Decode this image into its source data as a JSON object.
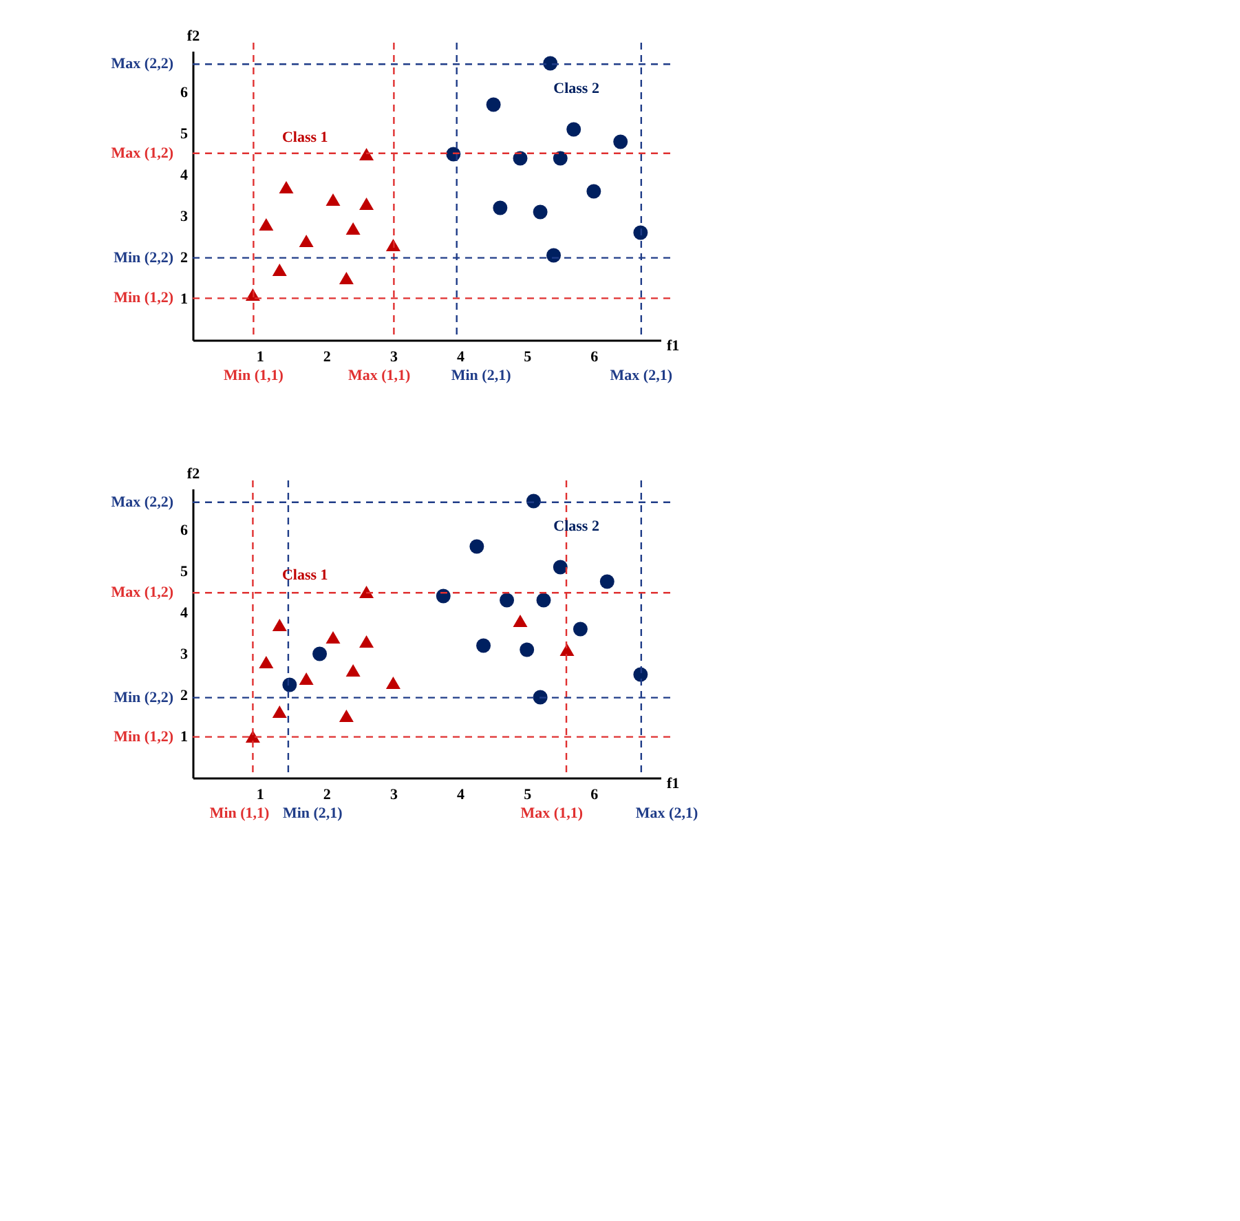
{
  "chart_data": [
    {
      "type": "scatter",
      "xlabel": "f1",
      "ylabel": "f2",
      "xlim": [
        0,
        7
      ],
      "ylim": [
        0,
        7
      ],
      "xticks": [
        1,
        2,
        3,
        4,
        5,
        6
      ],
      "yticks": [
        1,
        2,
        3,
        4,
        5,
        6
      ],
      "series": [
        {
          "color": "#c00000",
          "marker": "triangle",
          "x": [
            0.9,
            1.3,
            1.1,
            1.4,
            1.7,
            2.1,
            2.3,
            2.4,
            2.6,
            2.6,
            3.0
          ],
          "values": [
            1.1,
            1.7,
            2.8,
            3.7,
            2.4,
            3.4,
            1.5,
            2.7,
            3.3,
            4.5,
            2.3
          ]
        },
        {
          "color": "#002060",
          "marker": "circle",
          "x": [
            5.35,
            4.5,
            5.7,
            6.4,
            3.9,
            4.9,
            5.5,
            6.0,
            4.6,
            5.2,
            6.7,
            5.4
          ],
          "values": [
            6.7,
            5.7,
            5.1,
            4.8,
            4.5,
            4.4,
            4.4,
            3.6,
            3.2,
            3.1,
            2.6,
            2.05
          ]
        }
      ],
      "ref_lines": [
        {
          "axis": "x",
          "value": 0.91,
          "label": "Min (1,1)",
          "color": "#e03030",
          "line_style": "dashed"
        },
        {
          "axis": "x",
          "value": 3.01,
          "label": "Max (1,1)",
          "color": "#e03030",
          "line_style": "dashed"
        },
        {
          "axis": "x",
          "value": 3.95,
          "label": "Min (2,1)",
          "color": "#1f3c88",
          "line_style": "dashed"
        },
        {
          "axis": "x",
          "value": 6.71,
          "label": "Max (2,1)",
          "color": "#1f3c88",
          "line_style": "dashed"
        },
        {
          "axis": "y",
          "value": 6.68,
          "label": "Max (2,2)",
          "color": "#1f3c88",
          "line_style": "dashed"
        },
        {
          "axis": "y",
          "value": 4.52,
          "label": "Max (1,2)",
          "color": "#e03030",
          "line_style": "dashed"
        },
        {
          "axis": "y",
          "value": 1.99,
          "label": "Min (2,2)",
          "color": "#1f3c88",
          "line_style": "dashed"
        },
        {
          "axis": "y",
          "value": 1.01,
          "label": "Min (1,2)",
          "color": "#e03030",
          "line_style": "dashed"
        }
      ],
      "annotations": [
        "Class 1",
        "Class 2"
      ]
    },
    {
      "type": "scatter",
      "xlabel": "f1",
      "ylabel": "f2",
      "xlim": [
        0,
        7
      ],
      "ylim": [
        0,
        7
      ],
      "xticks": [
        1,
        2,
        3,
        4,
        5,
        6
      ],
      "yticks": [
        1,
        2,
        3,
        4,
        5,
        6
      ],
      "series": [
        {
          "color": "#c00000",
          "marker": "triangle",
          "x": [
            0.9,
            1.3,
            1.1,
            1.3,
            1.7,
            2.1,
            2.3,
            2.4,
            2.6,
            2.6,
            3.0,
            4.9,
            5.6
          ],
          "values": [
            1.0,
            1.6,
            2.8,
            3.7,
            2.4,
            3.4,
            1.5,
            2.6,
            3.3,
            4.5,
            2.3,
            3.8,
            3.1
          ]
        },
        {
          "color": "#002060",
          "marker": "circle",
          "x": [
            5.1,
            4.25,
            5.5,
            6.2,
            3.75,
            4.7,
            5.25,
            5.8,
            4.35,
            5.0,
            1.9,
            1.45,
            6.7,
            5.2
          ],
          "values": [
            6.7,
            5.6,
            5.1,
            4.75,
            4.4,
            4.3,
            4.3,
            3.6,
            3.2,
            3.1,
            3.0,
            2.25,
            2.5,
            1.95
          ]
        }
      ],
      "ref_lines": [
        {
          "axis": "x",
          "value": 0.9,
          "label": "Min (1,1)",
          "color": "#e03030",
          "line_style": "dashed"
        },
        {
          "axis": "x",
          "value": 1.43,
          "label": "Min (2,1)",
          "color": "#1f3c88",
          "line_style": "dashed"
        },
        {
          "axis": "x",
          "value": 5.59,
          "label": "Max (1,1)",
          "color": "#e03030",
          "line_style": "dashed"
        },
        {
          "axis": "x",
          "value": 6.71,
          "label": "Max (2,1)",
          "color": "#1f3c88",
          "line_style": "dashed"
        },
        {
          "axis": "y",
          "value": 6.67,
          "label": "Max (2,2)",
          "color": "#1f3c88",
          "line_style": "dashed"
        },
        {
          "axis": "y",
          "value": 4.48,
          "label": "Max (1,2)",
          "color": "#e03030",
          "line_style": "dashed"
        },
        {
          "axis": "y",
          "value": 1.94,
          "label": "Min (2,2)",
          "color": "#1f3c88",
          "line_style": "dashed"
        },
        {
          "axis": "y",
          "value": 0.99,
          "label": "Min (1,2)",
          "color": "#e03030",
          "line_style": "dashed"
        }
      ],
      "annotations": [
        "Class 1",
        "Class 2"
      ]
    }
  ]
}
